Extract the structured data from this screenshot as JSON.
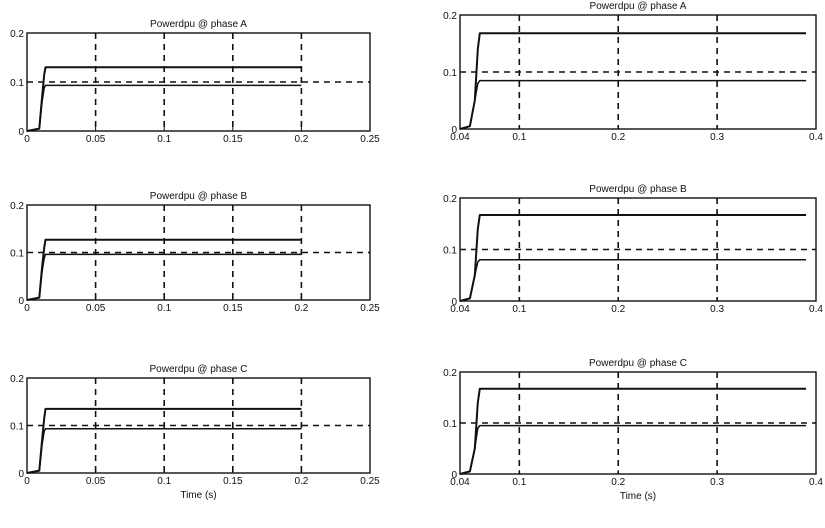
{
  "chart_data": [
    {
      "type": "line",
      "title": "Powerdpu @ phase A",
      "xlabel": "",
      "ylabel": "",
      "xlim": [
        0,
        0.25
      ],
      "ylim": [
        0,
        0.2
      ],
      "xticks": [
        "0",
        "0.05",
        "0.1",
        "0.15",
        "0.2",
        "0.25"
      ],
      "yticks": [
        "0",
        "0.1",
        "0.2"
      ],
      "grid": true,
      "series": [
        {
          "x": [
            0,
            0.009,
            0.011,
            0.0125,
            0.0135,
            0.2
          ],
          "y": [
            0,
            0.005,
            0.07,
            0.115,
            0.13,
            0.13
          ]
        },
        {
          "x": [
            0,
            0.009,
            0.011,
            0.0125,
            0.0135,
            0.2
          ],
          "y": [
            0,
            0.005,
            0.06,
            0.088,
            0.093,
            0.093
          ]
        }
      ],
      "reference_y": 0.1
    },
    {
      "type": "line",
      "title": "Powerdpu @ phase B",
      "xlabel": "",
      "ylabel": "",
      "xlim": [
        0,
        0.25
      ],
      "ylim": [
        0,
        0.2
      ],
      "xticks": [
        "0",
        "0.05",
        "0.1",
        "0.15",
        "0.2",
        "0.25"
      ],
      "yticks": [
        "0",
        "0.1",
        "0.2"
      ],
      "grid": true,
      "series": [
        {
          "x": [
            0,
            0.009,
            0.011,
            0.0125,
            0.0135,
            0.2
          ],
          "y": [
            0,
            0.005,
            0.07,
            0.11,
            0.127,
            0.127
          ]
        },
        {
          "x": [
            0,
            0.009,
            0.011,
            0.0125,
            0.0135,
            0.2
          ],
          "y": [
            0,
            0.005,
            0.06,
            0.088,
            0.096,
            0.096
          ]
        }
      ],
      "reference_y": 0.1
    },
    {
      "type": "line",
      "title": "Powerdpu @ phase C",
      "xlabel": "Time (s)",
      "ylabel": "",
      "xlim": [
        0,
        0.25
      ],
      "ylim": [
        0,
        0.2
      ],
      "xticks": [
        "0",
        "0.05",
        "0.1",
        "0.15",
        "0.2",
        "0.25"
      ],
      "yticks": [
        "0",
        "0.1",
        "0.2"
      ],
      "grid": true,
      "series": [
        {
          "x": [
            0,
            0.009,
            0.011,
            0.0125,
            0.0135,
            0.2
          ],
          "y": [
            0,
            0.005,
            0.07,
            0.115,
            0.135,
            0.135
          ]
        },
        {
          "x": [
            0,
            0.009,
            0.011,
            0.0125,
            0.0135,
            0.2
          ],
          "y": [
            0,
            0.005,
            0.06,
            0.088,
            0.093,
            0.093
          ]
        }
      ],
      "reference_y": 0.1
    },
    {
      "type": "line",
      "title": "Powerdpu @ phase A",
      "xlabel": "",
      "ylabel": "",
      "xlim": [
        0.04,
        0.4
      ],
      "ylim": [
        0,
        0.2
      ],
      "xticks": [
        "0.04",
        "0.1",
        "0.2",
        "0.3",
        "0.4"
      ],
      "yticks": [
        "0",
        "0.1",
        "0.2"
      ],
      "grid": true,
      "series": [
        {
          "x": [
            0.04,
            0.05,
            0.055,
            0.058,
            0.06,
            0.39
          ],
          "y": [
            0,
            0.005,
            0.05,
            0.14,
            0.168,
            0.168
          ]
        },
        {
          "x": [
            0.04,
            0.05,
            0.055,
            0.058,
            0.06,
            0.39
          ],
          "y": [
            0,
            0.005,
            0.05,
            0.08,
            0.085,
            0.085
          ]
        }
      ],
      "reference_y": 0.1
    },
    {
      "type": "line",
      "title": "Powerdpu @ phase B",
      "xlabel": "",
      "ylabel": "",
      "xlim": [
        0.04,
        0.4
      ],
      "ylim": [
        0,
        0.2
      ],
      "xticks": [
        "0.04",
        "0.1",
        "0.2",
        "0.3",
        "0.4"
      ],
      "yticks": [
        "0",
        "0.1",
        "0.2"
      ],
      "grid": true,
      "series": [
        {
          "x": [
            0.04,
            0.05,
            0.055,
            0.058,
            0.06,
            0.39
          ],
          "y": [
            0,
            0.005,
            0.05,
            0.14,
            0.167,
            0.167
          ]
        },
        {
          "x": [
            0.04,
            0.05,
            0.055,
            0.058,
            0.06,
            0.39
          ],
          "y": [
            0,
            0.005,
            0.05,
            0.076,
            0.08,
            0.08
          ]
        }
      ],
      "reference_y": 0.1
    },
    {
      "type": "line",
      "title": "Powerdpu @ phase C",
      "xlabel": "Time (s)",
      "ylabel": "",
      "xlim": [
        0.04,
        0.4
      ],
      "ylim": [
        0,
        0.2
      ],
      "xticks": [
        "0.04",
        "0.1",
        "0.2",
        "0.3",
        "0.4"
      ],
      "yticks": [
        "0",
        "0.1",
        "0.2"
      ],
      "grid": true,
      "series": [
        {
          "x": [
            0.04,
            0.05,
            0.055,
            0.058,
            0.06,
            0.39
          ],
          "y": [
            0,
            0.005,
            0.05,
            0.14,
            0.167,
            0.167
          ]
        },
        {
          "x": [
            0.04,
            0.05,
            0.055,
            0.058,
            0.06,
            0.39
          ],
          "y": [
            0,
            0.005,
            0.05,
            0.09,
            0.095,
            0.095
          ]
        }
      ],
      "reference_y": 0.1
    }
  ]
}
